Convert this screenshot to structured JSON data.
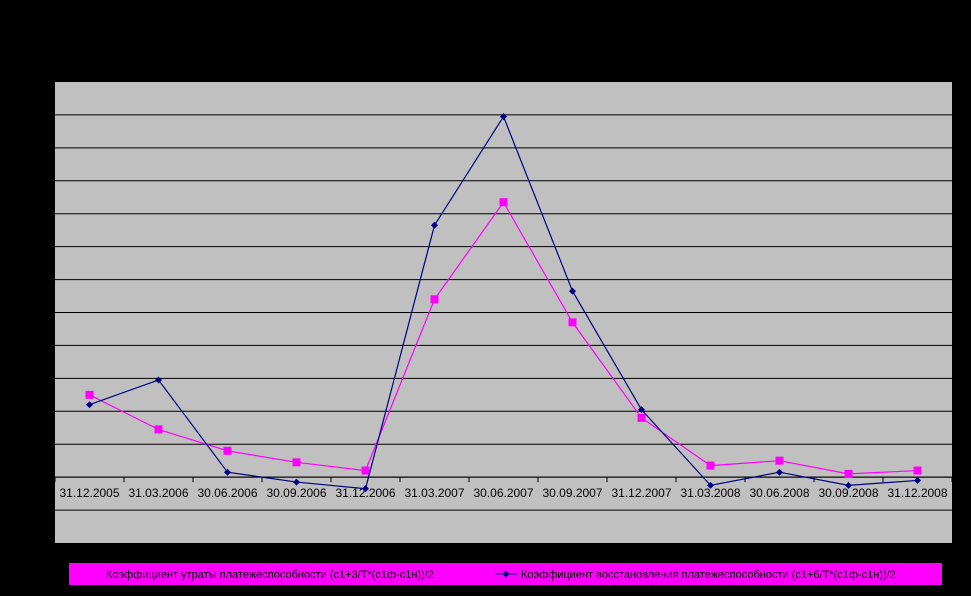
{
  "colors": {
    "page_background": "#000000",
    "plot_background": "#c0c0c0",
    "gridline": "#000000",
    "legend_background": "#ff00ff"
  },
  "chart_data": {
    "type": "line",
    "title": "",
    "xlabel": "",
    "ylabel": "",
    "grid": true,
    "legend_position": "bottom",
    "categories": [
      "31.12.2005",
      "31.03.2006",
      "30.06.2006",
      "30.09.2006",
      "31.12.2006",
      "31.03.2007",
      "30.06.2007",
      "30.09.2007",
      "31.12.2007",
      "31.03.2008",
      "30.06.2008",
      "30.09.2008",
      "31.12.2008"
    ],
    "ylim": [
      -2,
      12
    ],
    "series": [
      {
        "name": "Коэффициент утраты платежеспособности (с1+3/T*(с1ф-с1н))/2",
        "color": "#ff00ff",
        "marker": "square",
        "values": [
          2.5,
          1.45,
          0.8,
          0.45,
          0.2,
          5.4,
          8.35,
          4.7,
          1.8,
          0.35,
          0.5,
          0.1,
          0.2
        ]
      },
      {
        "name": "Коэффициент восстановления платежеспособности (с1+6/T*(с1ф-с1н))/2",
        "color": "#000080",
        "marker": "diamond",
        "values": [
          2.2,
          2.95,
          0.15,
          -0.15,
          -0.35,
          7.65,
          10.95,
          5.65,
          2.05,
          -0.25,
          0.15,
          -0.25,
          -0.1
        ]
      }
    ]
  }
}
